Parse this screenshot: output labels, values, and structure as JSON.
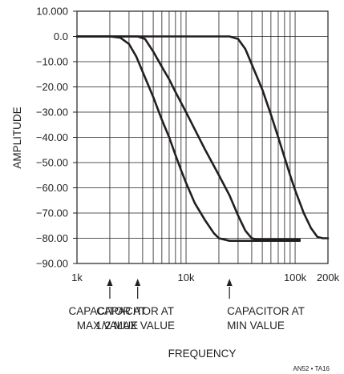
{
  "chart_data": {
    "type": "line",
    "title": "",
    "xlabel": "FREQUENCY",
    "ylabel": "AMPLITUDE",
    "x_scale": "log",
    "xlim": [
      1000,
      200000
    ],
    "ylim": [
      -90,
      10
    ],
    "grid": true,
    "x_tick_values": [
      1000,
      10000,
      100000,
      200000
    ],
    "x_tick_labels": [
      "1k",
      "10k",
      "100k",
      "200k"
    ],
    "y_tick_values": [
      10,
      0,
      -10,
      -20,
      -30,
      -40,
      -50,
      -60,
      -70,
      -80,
      -90
    ],
    "y_tick_labels": [
      "10.000",
      "0.0",
      "−10.00",
      "−20.00",
      "−30.00",
      "−40.00",
      "−50.00",
      "−60.00",
      "−70.00",
      "−80.00",
      "−90.00"
    ],
    "series": [
      {
        "label": "capacitor at max value",
        "points": [
          [
            1000,
            0
          ],
          [
            2000,
            0
          ],
          [
            2500,
            -0.5
          ],
          [
            3000,
            -3
          ],
          [
            3500,
            -8
          ],
          [
            4000,
            -14
          ],
          [
            5000,
            -24
          ],
          [
            6000,
            -33
          ],
          [
            7000,
            -40
          ],
          [
            8000,
            -47
          ],
          [
            9000,
            -53
          ],
          [
            10000,
            -58
          ],
          [
            12000,
            -66
          ],
          [
            15000,
            -73
          ],
          [
            18000,
            -78
          ],
          [
            20000,
            -80
          ],
          [
            25000,
            -81
          ],
          [
            40000,
            -81
          ],
          [
            70000,
            -81
          ],
          [
            110000,
            -81
          ]
        ]
      },
      {
        "label": "capacitor at 1/2 max value",
        "points": [
          [
            1000,
            0
          ],
          [
            3600,
            0
          ],
          [
            4200,
            -1
          ],
          [
            5000,
            -6
          ],
          [
            6000,
            -12
          ],
          [
            7000,
            -17
          ],
          [
            8000,
            -22
          ],
          [
            10000,
            -30
          ],
          [
            15000,
            -45
          ],
          [
            20000,
            -55
          ],
          [
            25000,
            -63
          ],
          [
            30000,
            -71
          ],
          [
            35000,
            -77
          ],
          [
            40000,
            -80
          ],
          [
            45000,
            -80.5
          ],
          [
            70000,
            -80.5
          ],
          [
            110000,
            -80.5
          ]
        ]
      },
      {
        "label": "capacitor at min value",
        "points": [
          [
            1000,
            0
          ],
          [
            25000,
            0
          ],
          [
            30000,
            -1
          ],
          [
            35000,
            -5
          ],
          [
            40000,
            -11
          ],
          [
            50000,
            -21
          ],
          [
            60000,
            -31
          ],
          [
            70000,
            -40
          ],
          [
            80000,
            -48
          ],
          [
            90000,
            -55
          ],
          [
            100000,
            -61
          ],
          [
            120000,
            -70
          ],
          [
            140000,
            -76
          ],
          [
            160000,
            -79.5
          ],
          [
            180000,
            -80
          ],
          [
            200000,
            -80
          ]
        ]
      }
    ],
    "annotations": [
      {
        "lines": [
          "CAPACITOR AT",
          "MAX VALUE"
        ],
        "arrow_x": 2000
      },
      {
        "lines": [
          "CAPACITOR AT",
          "1/2 MAX VALUE"
        ],
        "arrow_x": 3600
      },
      {
        "lines": [
          "CAPACITOR AT",
          "MIN VALUE"
        ],
        "arrow_x": 25000
      }
    ],
    "footnote": "AN52 • TA16"
  }
}
